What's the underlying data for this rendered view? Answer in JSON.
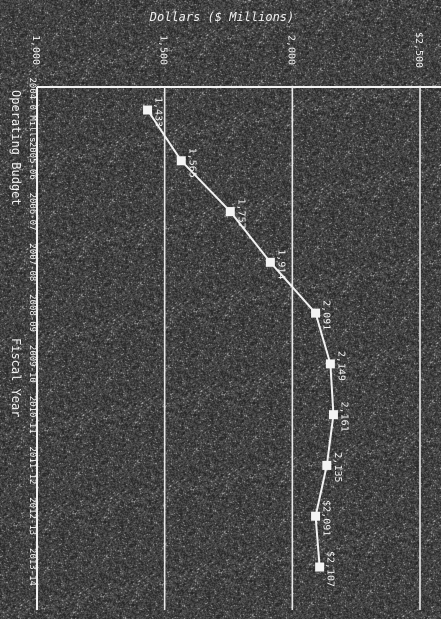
{
  "chart_data": {
    "type": "line",
    "orientation": "rotated-90-clockwise",
    "y_axis_title": "Dollars ($ Millions)",
    "y_ticks": [
      "1,000",
      "1,500",
      "2,000",
      "$2,500"
    ],
    "ylim": [
      1000,
      2500
    ],
    "x_axis_title": "Fiscal Year",
    "series_label": "Operating Budget",
    "categories": [
      "2004-05",
      "2005-06",
      "2006-07",
      "2007-08",
      "2008-09",
      "2009-10",
      "2010-11",
      "2011-12",
      "2012-13",
      "2013-14"
    ],
    "values": [
      1433,
      1565,
      1757,
      1914,
      2091,
      2149,
      2161,
      2135,
      2091,
      2107
    ],
    "point_labels": [
      "1,433",
      "1,565",
      "1,757",
      "1,914",
      "2,091",
      "2,149",
      "2,161",
      "2,135",
      "$2,091",
      "$2,107"
    ],
    "partial_category_label": "2004-0 Mills",
    "grid": true,
    "colors": {
      "background": "#2f2f2f",
      "foreground": "#f2f2f2"
    }
  }
}
